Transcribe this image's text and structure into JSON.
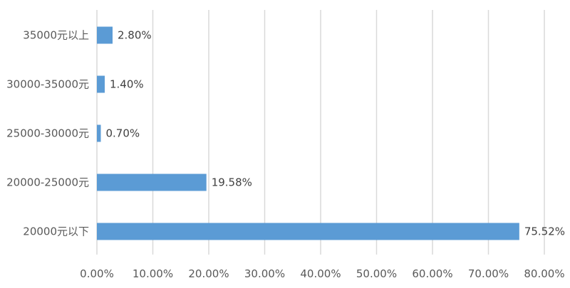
{
  "chart_data": {
    "type": "bar",
    "orientation": "horizontal",
    "categories": [
      "35000元以上",
      "30000-35000元",
      "25000-30000元",
      "20000-25000元",
      "20000元以下"
    ],
    "values": [
      2.8,
      1.4,
      0.7,
      19.58,
      75.52
    ],
    "data_labels": [
      "2.80%",
      "1.40%",
      "0.70%",
      "19.58%",
      "75.52%"
    ],
    "xlim": [
      0,
      80
    ],
    "x_ticks": [
      0,
      10,
      20,
      30,
      40,
      50,
      60,
      70,
      80
    ],
    "x_tick_labels": [
      "0.00%",
      "10.00%",
      "20.00%",
      "30.00%",
      "40.00%",
      "50.00%",
      "60.00%",
      "70.00%",
      "80.00%"
    ],
    "grid": true,
    "legend": "none",
    "bar_color": "#5b9bd5"
  }
}
